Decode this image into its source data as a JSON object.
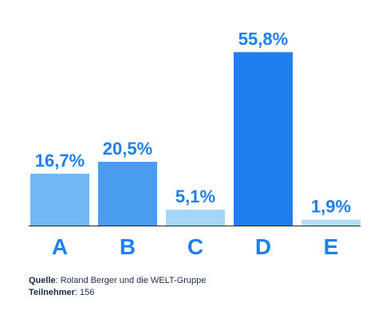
{
  "chart_data": {
    "type": "bar",
    "categories": [
      "A",
      "B",
      "C",
      "D",
      "E"
    ],
    "values": [
      16.7,
      20.5,
      5.1,
      55.8,
      1.9
    ],
    "value_labels": [
      "16,7%",
      "20,5%",
      "5,1%",
      "55,8%",
      "1,9%"
    ],
    "bar_colors": [
      "#6fb8f3",
      "#4a9cf0",
      "#a3d6f8",
      "#1f7ff0",
      "#b5def8"
    ],
    "label_color": "#1f7ff0",
    "axis_color": "#222222",
    "ylim": [
      0,
      60
    ],
    "grid": false,
    "title": "",
    "xlabel": "",
    "ylabel": ""
  },
  "footer": {
    "source_label": "Quelle",
    "source_text": ": Roland Berger und die WELT-Gruppe",
    "participants_label": "Teilnehmer",
    "participants_text": ": 156"
  }
}
